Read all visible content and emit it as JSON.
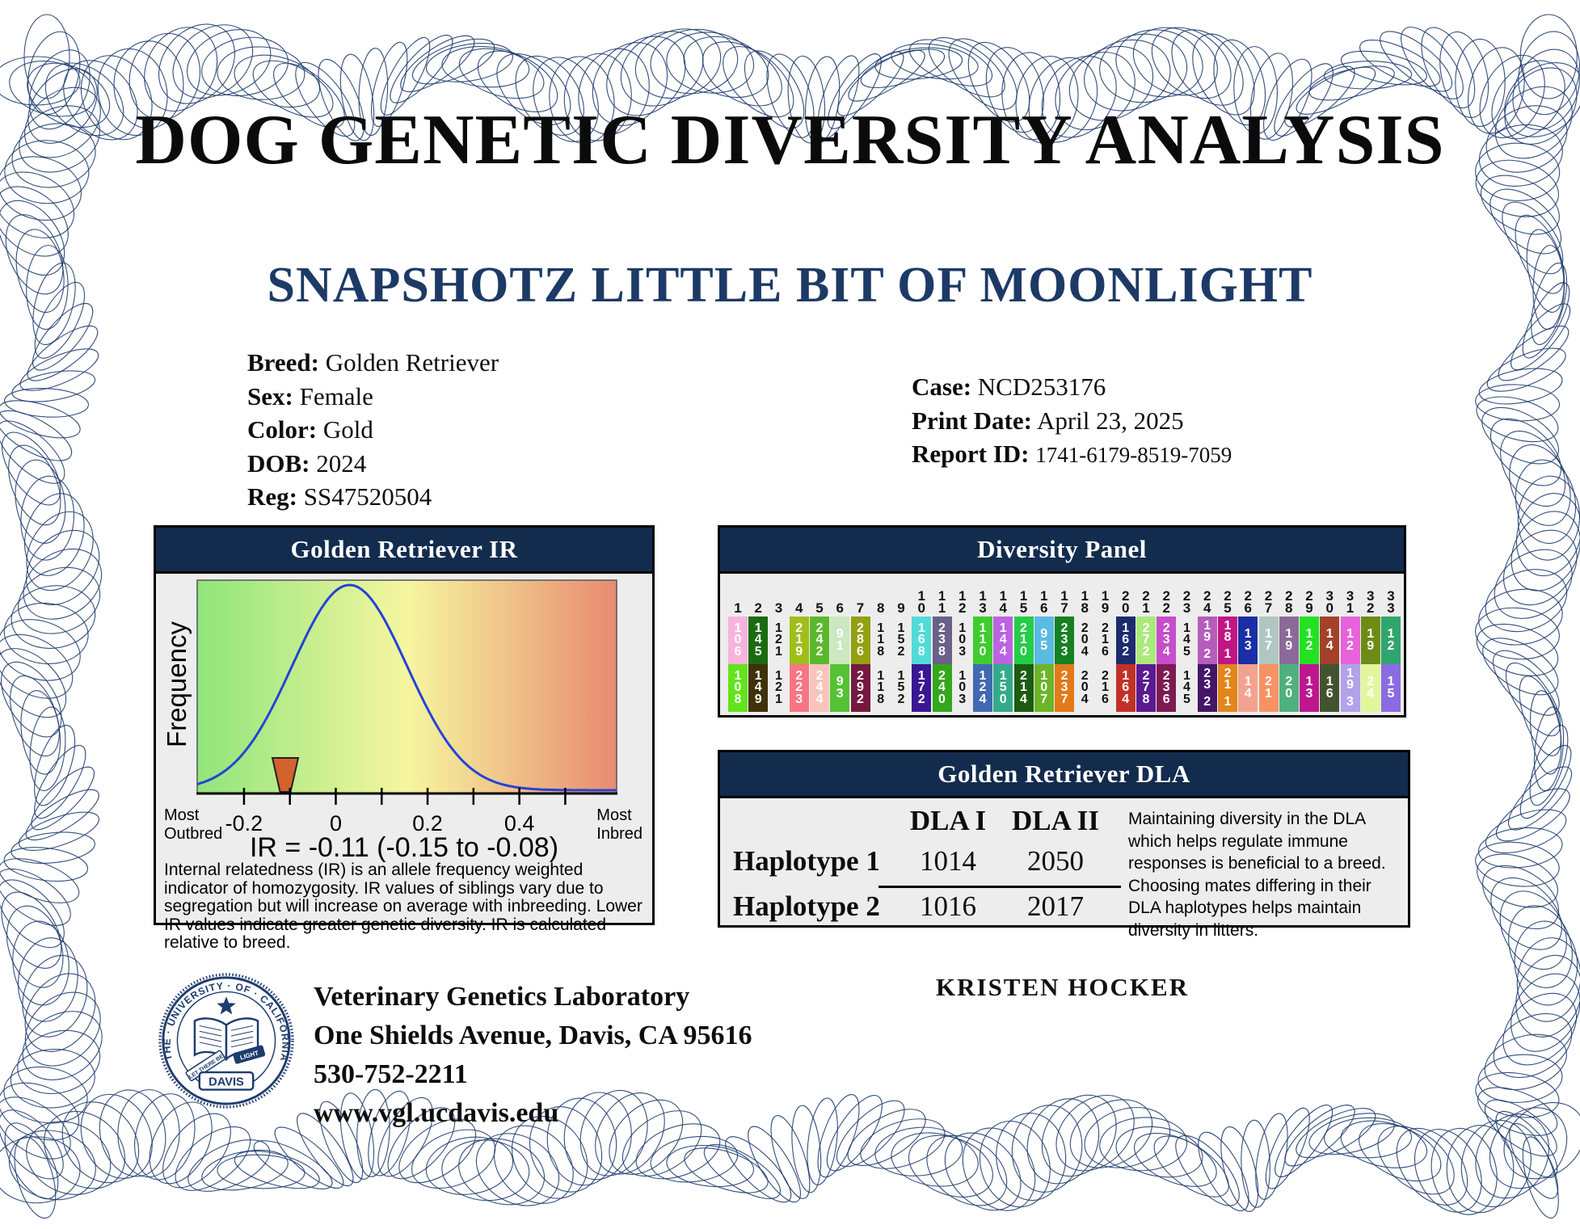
{
  "page_title": "DOG GENETIC DIVERSITY ANALYSIS",
  "dog_name": "SNAPSHOTZ LITTLE BIT OF MOONLIGHT",
  "details_left": [
    {
      "label": "Breed:",
      "value": "Golden Retriever"
    },
    {
      "label": "Sex:",
      "value": "Female"
    },
    {
      "label": "Color:",
      "value": "Gold"
    },
    {
      "label": "DOB:",
      "value": "2024"
    },
    {
      "label": "Reg:",
      "value": "SS47520504"
    }
  ],
  "details_right": [
    {
      "label": "Case:",
      "value": "NCD253176"
    },
    {
      "label": "Print Date:",
      "value": "April 23, 2025"
    },
    {
      "label": "Report ID:",
      "value": "1741-6179-8519-7059"
    }
  ],
  "colors": {
    "navy_bar": "#132c4e",
    "name_navy": "#1d3a66",
    "border_navy": "#1e3c6e",
    "panel_bg": "#ededed",
    "curve_blue": "#2443d8",
    "marker_orange": "#d2622e"
  },
  "ir_panel": {
    "title": "Golden Retriever IR",
    "y_axis_label": "Frequency",
    "left_axis_caption": "Most\nOutbred",
    "right_axis_caption": "Most\nInbred",
    "result_line": "IR = -0.11 (-0.15 to -0.08)",
    "description": "Internal relatedness (IR) is an allele frequency weighted indicator of homozygosity.  IR values of siblings vary due to segregation but will increase on average with inbreeding.  Lower IR values indicate greater genetic diversity.  IR is calculated relative to breed."
  },
  "chart_data": {
    "type": "line",
    "title": "Golden Retriever IR",
    "xlabel": "IR",
    "ylabel": "Frequency",
    "xlim": [
      -0.302,
      0.612
    ],
    "x_ticks": [
      -0.2,
      -0.1,
      0,
      0.1,
      0.2,
      0.3,
      0.4,
      0.5
    ],
    "x_tick_labels": [
      "-0.2",
      "",
      "0",
      "",
      "0.2",
      "",
      "0.4",
      ""
    ],
    "grid": false,
    "curve": {
      "shape": "gaussian",
      "mean": 0.03,
      "sd": 0.125
    },
    "marker": {
      "value": -0.11,
      "ci": [
        -0.15,
        -0.08
      ],
      "label": "IR = -0.11 (-0.15 to -0.08)"
    },
    "gradient": [
      "#8fe57b",
      "#f6f6a0",
      "#e88b70"
    ]
  },
  "diversity_panel": {
    "title": "Diversity Panel",
    "columns": [
      {
        "num": "1",
        "top": {
          "value": "106",
          "color": "#f7b3dc"
        },
        "bottom": {
          "value": "108",
          "color": "#63e31a"
        }
      },
      {
        "num": "2",
        "top": {
          "value": "145",
          "color": "#1b6b10"
        },
        "bottom": {
          "value": "149",
          "color": "#40310a"
        }
      },
      {
        "num": "3",
        "top": {
          "value": "121",
          "color": null
        },
        "bottom": {
          "value": "121",
          "color": null
        }
      },
      {
        "num": "4",
        "top": {
          "value": "219",
          "color": "#9fbe1b"
        },
        "bottom": {
          "value": "223",
          "color": "#f87581"
        }
      },
      {
        "num": "5",
        "top": {
          "value": "242",
          "color": "#5cb82b"
        },
        "bottom": {
          "value": "244",
          "color": "#fac4bc"
        }
      },
      {
        "num": "6",
        "top": {
          "value": "91",
          "color": "#cbe8c0"
        },
        "bottom": {
          "value": "93",
          "color": "#54c233"
        }
      },
      {
        "num": "7",
        "top": {
          "value": "286",
          "color": "#93a011"
        },
        "bottom": {
          "value": "292",
          "color": "#75193f"
        }
      },
      {
        "num": "8",
        "top": {
          "value": "118",
          "color": null
        },
        "bottom": {
          "value": "118",
          "color": null
        }
      },
      {
        "num": "9",
        "top": {
          "value": "152",
          "color": null
        },
        "bottom": {
          "value": "152",
          "color": null
        }
      },
      {
        "num": "10",
        "top": {
          "value": "168",
          "color": "#4fdcd9"
        },
        "bottom": {
          "value": "172",
          "color": "#3a1793"
        }
      },
      {
        "num": "11",
        "top": {
          "value": "238",
          "color": "#6b6088"
        },
        "bottom": {
          "value": "240",
          "color": "#33a81a"
        }
      },
      {
        "num": "12",
        "top": {
          "value": "103",
          "color": null
        },
        "bottom": {
          "value": "103",
          "color": null
        }
      },
      {
        "num": "13",
        "top": {
          "value": "110",
          "color": "#3ecc2e"
        },
        "bottom": {
          "value": "124",
          "color": "#4169b1"
        }
      },
      {
        "num": "14",
        "top": {
          "value": "144",
          "color": "#bb63e0"
        },
        "bottom": {
          "value": "150",
          "color": "#33ab8b"
        }
      },
      {
        "num": "15",
        "top": {
          "value": "210",
          "color": "#25cc47"
        },
        "bottom": {
          "value": "214",
          "color": "#1c5c12"
        }
      },
      {
        "num": "16",
        "top": {
          "value": "95",
          "color": "#5abae2"
        },
        "bottom": {
          "value": "107",
          "color": "#6cb528"
        }
      },
      {
        "num": "17",
        "top": {
          "value": "233",
          "color": "#168023"
        },
        "bottom": {
          "value": "237",
          "color": "#e27a1a"
        }
      },
      {
        "num": "18",
        "top": {
          "value": "204",
          "color": null
        },
        "bottom": {
          "value": "204",
          "color": null
        }
      },
      {
        "num": "19",
        "top": {
          "value": "216",
          "color": null
        },
        "bottom": {
          "value": "216",
          "color": null
        }
      },
      {
        "num": "20",
        "top": {
          "value": "162",
          "color": "#1c2b6e"
        },
        "bottom": {
          "value": "164",
          "color": "#c23129"
        }
      },
      {
        "num": "21",
        "top": {
          "value": "272",
          "color": "#abe97d"
        },
        "bottom": {
          "value": "278",
          "color": "#5c1a92"
        }
      },
      {
        "num": "22",
        "top": {
          "value": "234",
          "color": "#c64eca"
        },
        "bottom": {
          "value": "236",
          "color": "#7d1a52"
        }
      },
      {
        "num": "23",
        "top": {
          "value": "145",
          "color": null
        },
        "bottom": {
          "value": "145",
          "color": null
        }
      },
      {
        "num": "24",
        "top": {
          "value": "19.2",
          "color": "#b55cbd"
        },
        "bottom": {
          "value": "23.2",
          "color": "#451568"
        }
      },
      {
        "num": "25",
        "top": {
          "value": "18.1",
          "color": "#c21585"
        },
        "bottom": {
          "value": "21.1",
          "color": "#e2861b"
        }
      },
      {
        "num": "26",
        "top": {
          "value": "13",
          "color": "#1b2fa5"
        },
        "bottom": {
          "value": "14",
          "color": "#f2a28e"
        }
      },
      {
        "num": "27",
        "top": {
          "value": "17",
          "color": "#b0c7c1"
        },
        "bottom": {
          "value": "21",
          "color": "#f89263"
        }
      },
      {
        "num": "28",
        "top": {
          "value": "19",
          "color": "#8b6a99"
        },
        "bottom": {
          "value": "20",
          "color": "#4fb07f"
        }
      },
      {
        "num": "29",
        "top": {
          "value": "12",
          "color": "#23e223"
        },
        "bottom": {
          "value": "13",
          "color": "#bd168e"
        }
      },
      {
        "num": "30",
        "top": {
          "value": "14",
          "color": "#a34229"
        },
        "bottom": {
          "value": "16",
          "color": "#44532f"
        }
      },
      {
        "num": "31",
        "top": {
          "value": "12",
          "color": "#e863d9"
        },
        "bottom": {
          "value": "19.3",
          "color": "#b1a2e9"
        }
      },
      {
        "num": "32",
        "top": {
          "value": "19",
          "color": "#6c8c15"
        },
        "bottom": {
          "value": "24",
          "color": "#e2f69c"
        }
      },
      {
        "num": "33",
        "top": {
          "value": "12",
          "color": "#30a56e"
        },
        "bottom": {
          "value": "15",
          "color": "#8b6be2"
        }
      }
    ]
  },
  "dla_panel": {
    "title": "Golden Retriever DLA",
    "col_headers": [
      "DLA I",
      "DLA II"
    ],
    "rows": [
      {
        "label": "Haplotype 1",
        "values": [
          "1014",
          "2050"
        ]
      },
      {
        "label": "Haplotype 2",
        "values": [
          "1016",
          "2017"
        ]
      }
    ],
    "note": "Maintaining diversity in the DLA which helps regulate immune responses is beneficial to a breed.  Choosing mates differing in their DLA haplotypes helps maintain diversity in litters."
  },
  "footer": {
    "lab_name": "Veterinary Genetics Laboratory",
    "address": "One Shields Avenue, Davis, CA 95616",
    "phone": "530-752-2211",
    "website": "www.vgl.ucdavis.edu",
    "owner": "KRISTEN HOCKER",
    "seal": {
      "university": "THE · UNIVERSITY · OF · CALIFORNIA",
      "motto_line1": "LET THERE BE",
      "motto_line2": "LIGHT",
      "city": "DAVIS"
    }
  }
}
